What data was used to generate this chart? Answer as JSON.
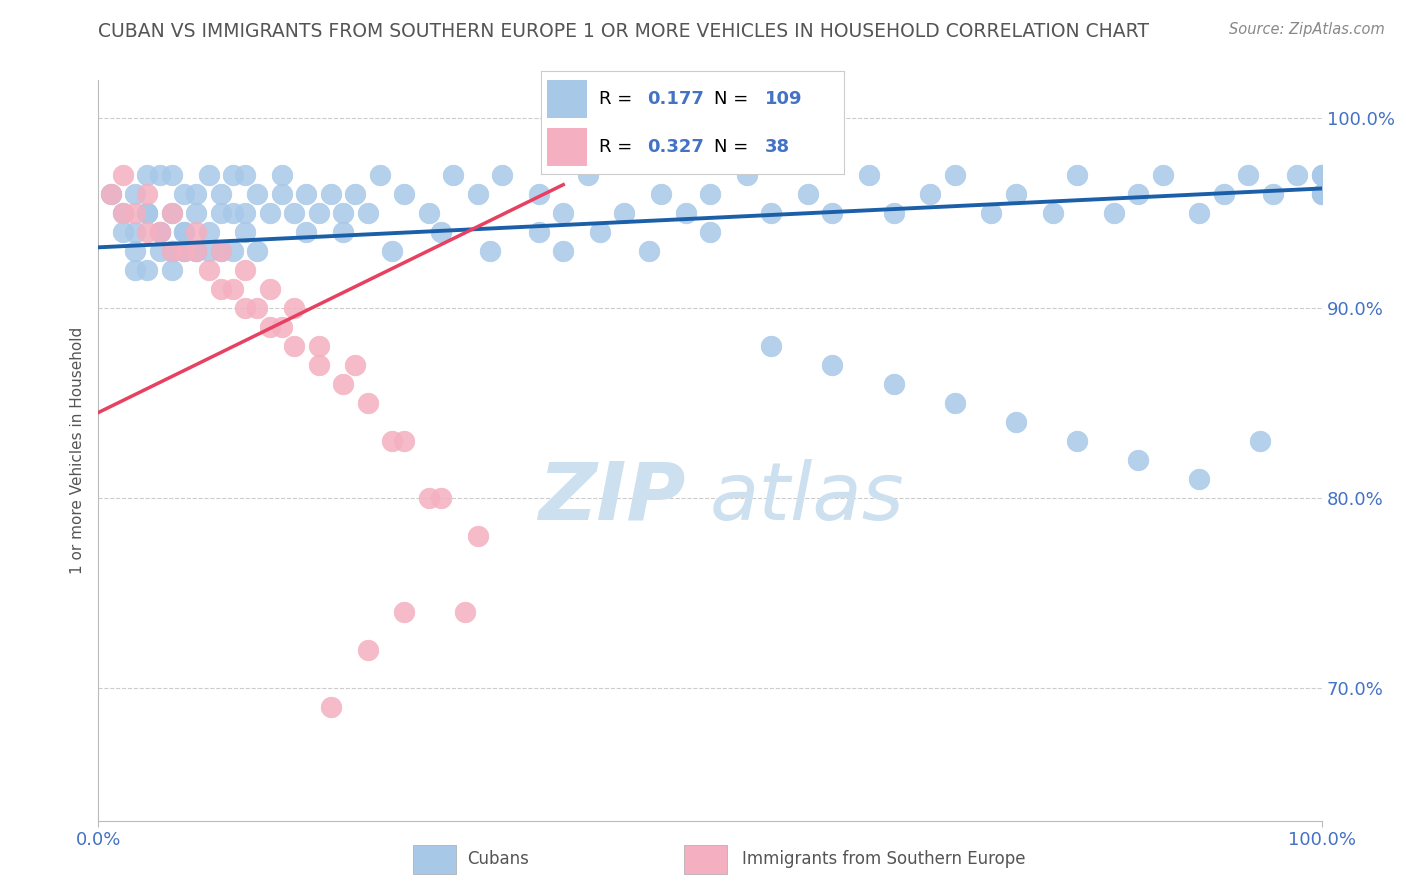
{
  "title": "CUBAN VS IMMIGRANTS FROM SOUTHERN EUROPE 1 OR MORE VEHICLES IN HOUSEHOLD CORRELATION CHART",
  "source_text": "Source: ZipAtlas.com",
  "ylabel": "1 or more Vehicles in Household",
  "xlim": [
    0,
    100
  ],
  "ylim": [
    63,
    102
  ],
  "xtick_labels": [
    "0.0%",
    "100.0%"
  ],
  "xtick_positions": [
    0,
    100
  ],
  "ytick_labels": [
    "70.0%",
    "80.0%",
    "90.0%",
    "100.0%"
  ],
  "ytick_positions": [
    70,
    80,
    90,
    100
  ],
  "blue_R": 0.177,
  "blue_N": 109,
  "pink_R": 0.327,
  "pink_N": 38,
  "blue_color": "#a8c8e8",
  "blue_line_color": "#1a5fa8",
  "pink_color": "#f4b0c0",
  "pink_line_color": "#e84060",
  "watermark_color": "#cde0f0",
  "grid_color": "#cccccc",
  "background_color": "#ffffff",
  "title_color": "#555555",
  "tick_color": "#4472c4",
  "blue_trend_x": [
    0,
    100
  ],
  "blue_trend_y": [
    93.2,
    96.3
  ],
  "pink_trend_x": [
    0,
    38
  ],
  "pink_trend_y": [
    84.5,
    96.5
  ],
  "blue_dots_x": [
    1,
    2,
    3,
    3,
    4,
    4,
    5,
    5,
    6,
    6,
    7,
    7,
    8,
    8,
    9,
    9,
    10,
    10,
    11,
    11,
    12,
    12,
    13,
    14,
    15,
    15,
    16,
    17,
    18,
    19,
    20,
    21,
    22,
    23,
    25,
    27,
    29,
    31,
    33,
    36,
    38,
    40,
    43,
    46,
    48,
    50,
    53,
    55,
    58,
    60,
    63,
    65,
    68,
    70,
    73,
    75,
    78,
    80,
    83,
    85,
    87,
    90,
    92,
    94,
    96,
    98,
    100,
    100,
    100,
    100,
    6,
    7,
    8,
    9,
    10,
    11,
    12,
    13,
    3,
    4,
    5,
    6,
    7,
    2,
    3,
    4,
    5,
    6,
    7,
    8,
    17,
    20,
    24,
    28,
    32,
    36,
    38,
    41,
    45,
    50,
    55,
    60,
    65,
    70,
    75,
    80,
    85,
    90,
    95
  ],
  "blue_dots_y": [
    96,
    95,
    96,
    94,
    97,
    95,
    97,
    94,
    97,
    95,
    96,
    94,
    96,
    95,
    97,
    94,
    96,
    95,
    97,
    95,
    97,
    95,
    96,
    95,
    97,
    96,
    95,
    96,
    95,
    96,
    95,
    96,
    95,
    97,
    96,
    95,
    97,
    96,
    97,
    96,
    95,
    97,
    95,
    96,
    95,
    96,
    97,
    95,
    96,
    95,
    97,
    95,
    96,
    97,
    95,
    96,
    95,
    97,
    95,
    96,
    97,
    95,
    96,
    97,
    96,
    97,
    96,
    97,
    96,
    97,
    93,
    93,
    93,
    93,
    93,
    93,
    94,
    93,
    92,
    92,
    93,
    92,
    93,
    94,
    93,
    95,
    94,
    93,
    94,
    93,
    94,
    94,
    93,
    94,
    93,
    94,
    93,
    94,
    93,
    94,
    88,
    87,
    86,
    85,
    84,
    83,
    82,
    81,
    83
  ],
  "pink_dots_x": [
    1,
    2,
    3,
    4,
    5,
    6,
    7,
    8,
    9,
    10,
    11,
    12,
    13,
    14,
    15,
    16,
    18,
    20,
    22,
    25,
    28,
    31,
    2,
    4,
    6,
    8,
    10,
    12,
    14,
    16,
    18,
    21,
    24,
    27,
    30,
    25,
    22,
    19
  ],
  "pink_dots_y": [
    96,
    95,
    95,
    94,
    94,
    93,
    93,
    93,
    92,
    91,
    91,
    90,
    90,
    89,
    89,
    88,
    87,
    86,
    85,
    83,
    80,
    78,
    97,
    96,
    95,
    94,
    93,
    92,
    91,
    90,
    88,
    87,
    83,
    80,
    74,
    74,
    72,
    69
  ],
  "figsize": [
    14.06,
    8.92
  ],
  "dpi": 100
}
